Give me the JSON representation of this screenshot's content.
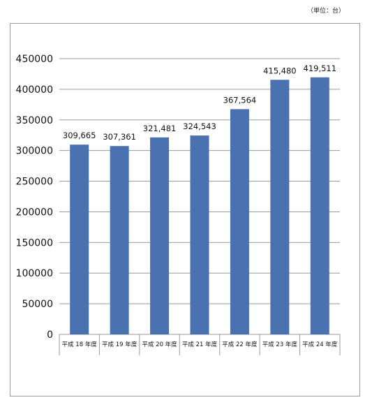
{
  "unit_label": "（単位：台）",
  "colors": {
    "bar": "#4a71b0",
    "grid": "#9a9a9a",
    "frame": "#9a9a9a"
  },
  "chart_data": {
    "type": "bar",
    "title": "",
    "xlabel": "",
    "ylabel": "",
    "categories": [
      "平成 18 年度",
      "平成 19 年度",
      "平成 20 年度",
      "平成 21 年度",
      "平成 22 年度",
      "平成 23 年度",
      "平成 24 年度"
    ],
    "values": [
      309665,
      307361,
      321481,
      324543,
      367564,
      415480,
      419511
    ],
    "value_labels": [
      "309,665",
      "307,361",
      "321,481",
      "324,543",
      "367,564",
      "415,480",
      "419,511"
    ],
    "ylim": [
      0,
      450000
    ],
    "yticks": [
      "0",
      "50000",
      "100000",
      "150000",
      "200000",
      "250000",
      "300000",
      "350000",
      "400000",
      "450000"
    ],
    "grid": true,
    "legend": "none"
  }
}
